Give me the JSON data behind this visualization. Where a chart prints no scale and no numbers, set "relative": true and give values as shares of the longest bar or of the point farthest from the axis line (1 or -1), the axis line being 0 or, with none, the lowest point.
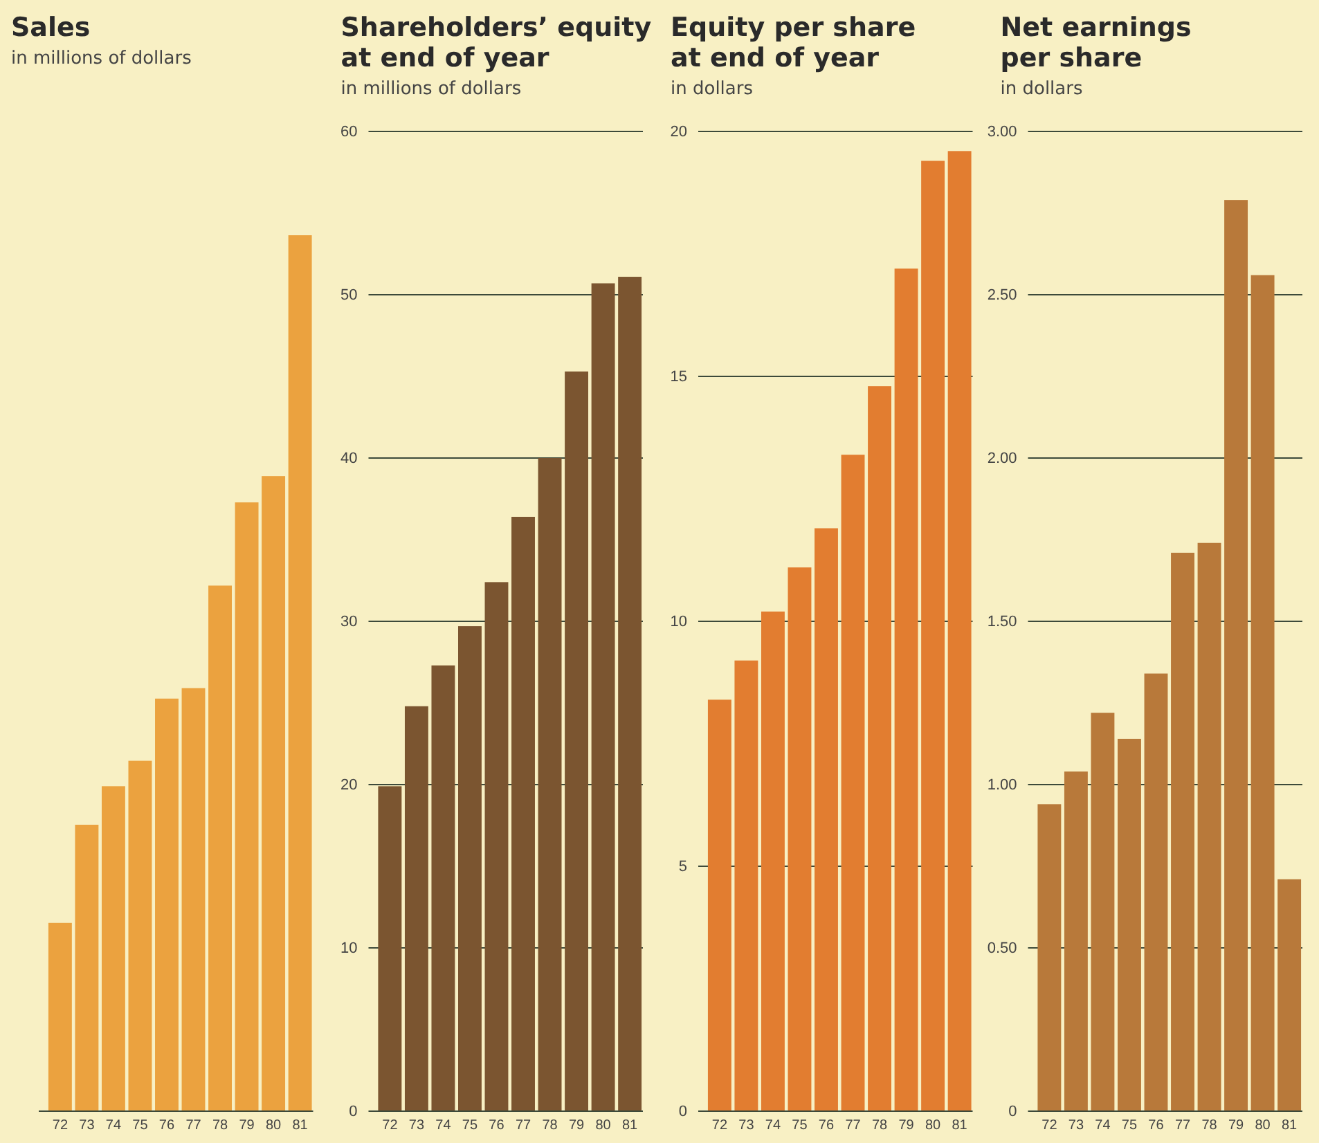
{
  "chart_data": [
    {
      "type": "bar",
      "title": "Sales",
      "subtitle": "in millions of dollars",
      "relative": true,
      "categories": [
        "72",
        "73",
        "74",
        "75",
        "76",
        "77",
        "78",
        "79",
        "80",
        "81"
      ],
      "values": [
        0.215,
        0.327,
        0.371,
        0.4,
        0.471,
        0.483,
        0.6,
        0.695,
        0.725,
        1
      ],
      "color": "#eba23f"
    },
    {
      "type": "bar",
      "title": "Shareholders’ equity\nat end of year",
      "subtitle": "in millions of dollars",
      "categories": [
        "72",
        "73",
        "74",
        "75",
        "76",
        "77",
        "78",
        "79",
        "80",
        "81"
      ],
      "values": [
        19.9,
        24.8,
        27.3,
        29.7,
        32.4,
        36.4,
        40,
        45.3,
        50.7,
        51.1
      ],
      "color": "#7b5530",
      "ylim": [
        0,
        60
      ],
      "yticks": [
        0,
        10,
        20,
        30,
        40,
        50,
        60
      ],
      "grid": "y"
    },
    {
      "type": "bar",
      "title": "Equity per share\nat end of year",
      "subtitle": "in dollars",
      "categories": [
        "72",
        "73",
        "74",
        "75",
        "76",
        "77",
        "78",
        "79",
        "80",
        "81"
      ],
      "values": [
        8.4,
        9.2,
        10.2,
        11.1,
        11.9,
        13.4,
        14.8,
        17.2,
        19.4,
        19.6
      ],
      "color": "#e27d30",
      "ylim": [
        0,
        20
      ],
      "yticks": [
        0,
        5,
        10,
        15,
        20
      ],
      "grid": "y"
    },
    {
      "type": "bar",
      "title": "Net earnings\nper share",
      "subtitle": "in dollars",
      "categories": [
        "72",
        "73",
        "74",
        "75",
        "76",
        "77",
        "78",
        "79",
        "80",
        "81"
      ],
      "values": [
        0.94,
        1.04,
        1.22,
        1.14,
        1.34,
        1.71,
        1.74,
        2.79,
        2.56,
        0.71
      ],
      "color": "#b8793a",
      "ylim": [
        0,
        3
      ],
      "yticks": [
        0,
        {
          "value": 0.5,
          "label": "0.50"
        },
        {
          "value": 1,
          "label": "1.00"
        },
        {
          "value": 1.5,
          "label": "1.50"
        },
        {
          "value": 2,
          "label": "2.00"
        },
        {
          "value": 2.5,
          "label": "2.50"
        },
        {
          "value": 3,
          "label": "3.00"
        }
      ],
      "grid": "y"
    }
  ]
}
